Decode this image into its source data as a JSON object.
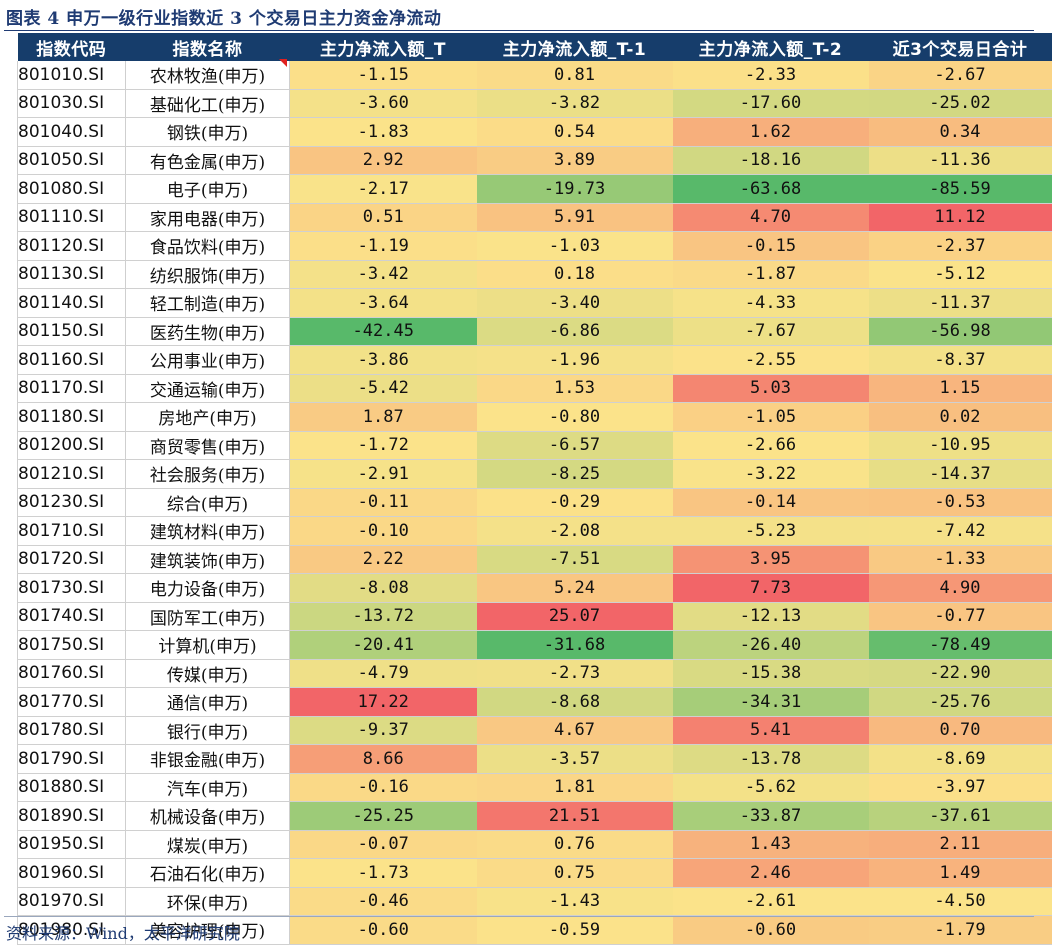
{
  "title": "图表 4  申万一级行业指数近 3 个交易日主力资金净流动",
  "source": "资料来源：Wind，太平洋研究院",
  "colors": {
    "header_bg": "#163d6b",
    "title": "#1f3b73",
    "low": "#58b96a",
    "mid": "#fbe38a",
    "high": "#f26568"
  },
  "columns": [
    "指数代码",
    "指数名称",
    "主力净流入额_T",
    "主力净流入额_T-1",
    "主力净流入额_T-2",
    "近3个交易日合计"
  ],
  "rows": [
    {
      "code": "801010.SI",
      "name": "农林牧渔(申万)",
      "t": "-1.15",
      "t1": "0.81",
      "t2": "-2.33",
      "sum": "-2.67"
    },
    {
      "code": "801030.SI",
      "name": "基础化工(申万)",
      "t": "-3.60",
      "t1": "-3.82",
      "t2": "-17.60",
      "sum": "-25.02"
    },
    {
      "code": "801040.SI",
      "name": "钢铁(申万)",
      "t": "-1.83",
      "t1": "0.54",
      "t2": "1.62",
      "sum": "0.34"
    },
    {
      "code": "801050.SI",
      "name": "有色金属(申万)",
      "t": "2.92",
      "t1": "3.89",
      "t2": "-18.16",
      "sum": "-11.36"
    },
    {
      "code": "801080.SI",
      "name": "电子(申万)",
      "t": "-2.17",
      "t1": "-19.73",
      "t2": "-63.68",
      "sum": "-85.59"
    },
    {
      "code": "801110.SI",
      "name": "家用电器(申万)",
      "t": "0.51",
      "t1": "5.91",
      "t2": "4.70",
      "sum": "11.12"
    },
    {
      "code": "801120.SI",
      "name": "食品饮料(申万)",
      "t": "-1.19",
      "t1": "-1.03",
      "t2": "-0.15",
      "sum": "-2.37"
    },
    {
      "code": "801130.SI",
      "name": "纺织服饰(申万)",
      "t": "-3.42",
      "t1": "0.18",
      "t2": "-1.87",
      "sum": "-5.12"
    },
    {
      "code": "801140.SI",
      "name": "轻工制造(申万)",
      "t": "-3.64",
      "t1": "-3.40",
      "t2": "-4.33",
      "sum": "-11.37"
    },
    {
      "code": "801150.SI",
      "name": "医药生物(申万)",
      "t": "-42.45",
      "t1": "-6.86",
      "t2": "-7.67",
      "sum": "-56.98"
    },
    {
      "code": "801160.SI",
      "name": "公用事业(申万)",
      "t": "-3.86",
      "t1": "-1.96",
      "t2": "-2.55",
      "sum": "-8.37"
    },
    {
      "code": "801170.SI",
      "name": "交通运输(申万)",
      "t": "-5.42",
      "t1": "1.53",
      "t2": "5.03",
      "sum": "1.15"
    },
    {
      "code": "801180.SI",
      "name": "房地产(申万)",
      "t": "1.87",
      "t1": "-0.80",
      "t2": "-1.05",
      "sum": "0.02"
    },
    {
      "code": "801200.SI",
      "name": "商贸零售(申万)",
      "t": "-1.72",
      "t1": "-6.57",
      "t2": "-2.66",
      "sum": "-10.95"
    },
    {
      "code": "801210.SI",
      "name": "社会服务(申万)",
      "t": "-2.91",
      "t1": "-8.25",
      "t2": "-3.22",
      "sum": "-14.37"
    },
    {
      "code": "801230.SI",
      "name": "综合(申万)",
      "t": "-0.11",
      "t1": "-0.29",
      "t2": "-0.14",
      "sum": "-0.53"
    },
    {
      "code": "801710.SI",
      "name": "建筑材料(申万)",
      "t": "-0.10",
      "t1": "-2.08",
      "t2": "-5.23",
      "sum": "-7.42"
    },
    {
      "code": "801720.SI",
      "name": "建筑装饰(申万)",
      "t": "2.22",
      "t1": "-7.51",
      "t2": "3.95",
      "sum": "-1.33"
    },
    {
      "code": "801730.SI",
      "name": "电力设备(申万)",
      "t": "-8.08",
      "t1": "5.24",
      "t2": "7.73",
      "sum": "4.90"
    },
    {
      "code": "801740.SI",
      "name": "国防军工(申万)",
      "t": "-13.72",
      "t1": "25.07",
      "t2": "-12.13",
      "sum": "-0.77"
    },
    {
      "code": "801750.SI",
      "name": "计算机(申万)",
      "t": "-20.41",
      "t1": "-31.68",
      "t2": "-26.40",
      "sum": "-78.49"
    },
    {
      "code": "801760.SI",
      "name": "传媒(申万)",
      "t": "-4.79",
      "t1": "-2.73",
      "t2": "-15.38",
      "sum": "-22.90"
    },
    {
      "code": "801770.SI",
      "name": "通信(申万)",
      "t": "17.22",
      "t1": "-8.68",
      "t2": "-34.31",
      "sum": "-25.76"
    },
    {
      "code": "801780.SI",
      "name": "银行(申万)",
      "t": "-9.37",
      "t1": "4.67",
      "t2": "5.41",
      "sum": "0.70"
    },
    {
      "code": "801790.SI",
      "name": "非银金融(申万)",
      "t": "8.66",
      "t1": "-3.57",
      "t2": "-13.78",
      "sum": "-8.69"
    },
    {
      "code": "801880.SI",
      "name": "汽车(申万)",
      "t": "-0.16",
      "t1": "1.81",
      "t2": "-5.62",
      "sum": "-3.97"
    },
    {
      "code": "801890.SI",
      "name": "机械设备(申万)",
      "t": "-25.25",
      "t1": "21.51",
      "t2": "-33.87",
      "sum": "-37.61"
    },
    {
      "code": "801950.SI",
      "name": "煤炭(申万)",
      "t": "-0.07",
      "t1": "0.76",
      "t2": "1.43",
      "sum": "2.11"
    },
    {
      "code": "801960.SI",
      "name": "石油石化(申万)",
      "t": "-1.73",
      "t1": "0.75",
      "t2": "2.46",
      "sum": "1.49"
    },
    {
      "code": "801970.SI",
      "name": "环保(申万)",
      "t": "-0.46",
      "t1": "-1.43",
      "t2": "-2.61",
      "sum": "-4.50"
    },
    {
      "code": "801980.SI",
      "name": "美容护理(申万)",
      "t": "-0.60",
      "t1": "-0.59",
      "t2": "-0.60",
      "sum": "-1.79"
    }
  ]
}
